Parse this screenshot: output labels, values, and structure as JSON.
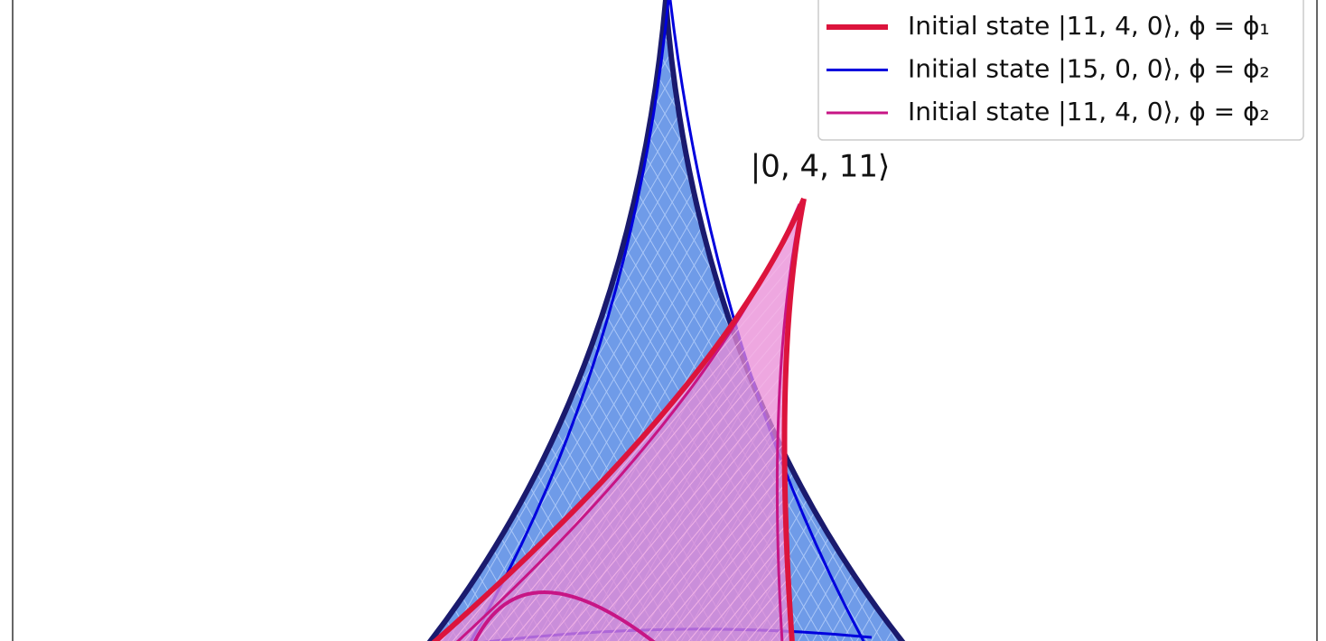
{
  "chart_data": {
    "type": "line",
    "annotation": "|0, 4, 11⟩",
    "series": [
      {
        "name": "Initial state |11, 4, 0⟩, ϕ = ϕ₁",
        "color": "#dc143c"
      },
      {
        "name": "Initial state |15, 0, 0⟩, ϕ = ϕ₂",
        "color": "#0000dd"
      },
      {
        "name": "Initial state |11, 4, 0⟩, ϕ = ϕ₂",
        "color": "#c71585"
      }
    ]
  }
}
